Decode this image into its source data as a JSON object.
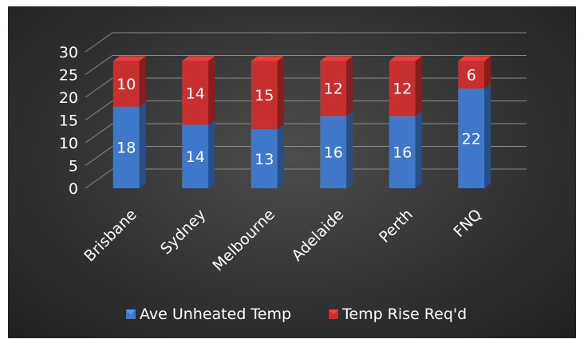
{
  "chart_data": {
    "type": "bar",
    "stacked": true,
    "style": "3d-stacked-column",
    "title": "",
    "xlabel": "",
    "ylabel": "",
    "ylim": [
      0,
      30
    ],
    "yticks": [
      "0",
      "5",
      "10",
      "15",
      "20",
      "25",
      "30"
    ],
    "grid": true,
    "legend_position": "bottom",
    "categories": [
      "Brisbane",
      "Sydney",
      "Melbourne",
      "Adelaide",
      "Perth",
      "FNQ"
    ],
    "series": [
      {
        "name": "Ave Unheated Temp",
        "values": [
          18,
          14,
          13,
          16,
          16,
          22
        ],
        "color": "#3f78c8"
      },
      {
        "name": "Temp Rise Req'd",
        "values": [
          10,
          14,
          15,
          12,
          12,
          6
        ],
        "color": "#c83030"
      }
    ],
    "background_color": "#3a3a3a",
    "text_color": "#ffffff"
  }
}
